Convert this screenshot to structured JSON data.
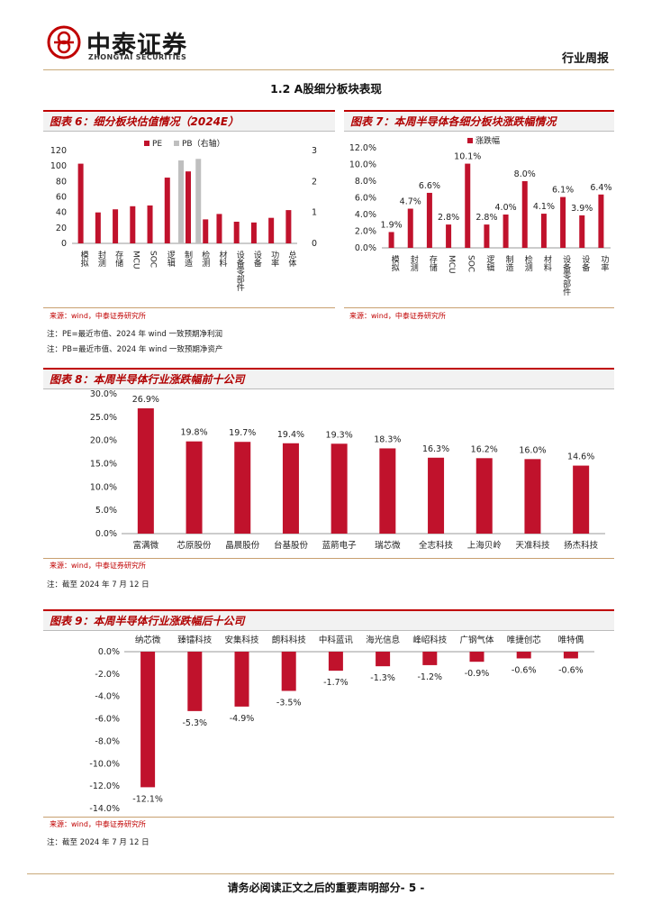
{
  "header": {
    "logo_cn": "中泰证券",
    "logo_en": "ZHONGTAI SECURITIES",
    "report_type": "行业周报"
  },
  "section_title": "1.2 A股细分板块表现",
  "figures": {
    "fig6": {
      "title": "图表 6：细分板块估值情况（2024E）",
      "source": "来源：wind，中泰证券研究所"
    },
    "fig7": {
      "title": "图表 7：本周半导体各细分板块涨跌幅情况",
      "source": "来源：wind，中泰证券研究所"
    },
    "fig8": {
      "title": "图表 8：本周半导体行业涨跌幅前十公司",
      "source": "来源：wind，中泰证券研究所"
    },
    "fig9": {
      "title": "图表 9：本周半导体行业涨跌幅后十公司",
      "source": "来源：wind，中泰证券研究所"
    }
  },
  "notes": {
    "pe": "注：PE=最近市值、2024 年 wind 一致预期净利润",
    "pb": "注：PB=最近市值、2024 年 wind 一致预期净资产",
    "date8": "注：截至 2024 年 7 月 12 日",
    "date9": "注：截至 2024 年 7 月 12 日"
  },
  "footer": "请务必阅读正文之后的重要声明部分- 5 -",
  "colors": {
    "bar_red": "#c0122c",
    "bar_gray": "#bfbfbf",
    "brand_red": "#c00000"
  },
  "chart_data": [
    {
      "id": "fig6",
      "type": "bar",
      "categories": [
        "模拟",
        "封测",
        "存储",
        "MCU",
        "SOC",
        "逻辑",
        "制造",
        "检测",
        "材料",
        "设备零部件",
        "设备",
        "功率",
        "总体"
      ],
      "series": [
        {
          "name": "PE",
          "axis": "left",
          "values": [
            103,
            40,
            44,
            48,
            49,
            85,
            null,
            31,
            38,
            28,
            27,
            33,
            43
          ],
          "color": "#c0122c"
        },
        {
          "name": "PB（右轴）",
          "axis": "right",
          "values": [
            null,
            null,
            null,
            null,
            null,
            null,
            2.68,
            2.73,
            null,
            null,
            null,
            null,
            null
          ],
          "color": "#bfbfbf"
        }
      ],
      "extra_pe_on_manufacturing": 93,
      "ylim": [
        0,
        120
      ],
      "yticks": [
        0,
        20,
        40,
        60,
        80,
        100,
        120
      ],
      "y2lim": [
        0,
        3
      ],
      "y2ticks": [
        0,
        1,
        2,
        3
      ],
      "legend": "top-center"
    },
    {
      "id": "fig7",
      "type": "bar",
      "categories": [
        "模拟",
        "封测",
        "存储",
        "MCU",
        "SOC",
        "逻辑",
        "制造",
        "检测",
        "材料",
        "设备零部件",
        "设备",
        "功率"
      ],
      "series": [
        {
          "name": "涨跌幅",
          "values": [
            1.9,
            4.7,
            6.6,
            2.8,
            10.1,
            2.8,
            4.0,
            8.0,
            4.1,
            6.1,
            3.9,
            6.4
          ]
        }
      ],
      "labels": [
        "1.9%",
        "4.7%",
        "6.6%",
        "2.8%",
        "10.1%",
        "2.8%",
        "4.0%",
        "8.0%",
        "4.1%",
        "6.1%",
        "3.9%",
        "6.4%"
      ],
      "ylim": [
        0,
        12
      ],
      "yticks": [
        "0.0%",
        "2.0%",
        "4.0%",
        "6.0%",
        "8.0%",
        "10.0%",
        "12.0%"
      ],
      "legend": "top-center"
    },
    {
      "id": "fig8",
      "type": "bar",
      "categories": [
        "富满微",
        "芯原股份",
        "晶晨股份",
        "台基股份",
        "蓝箭电子",
        "瑞芯微",
        "全志科技",
        "上海贝岭",
        "天准科技",
        "扬杰科技"
      ],
      "values": [
        26.9,
        19.8,
        19.7,
        19.4,
        19.3,
        18.3,
        16.3,
        16.2,
        16.0,
        14.6
      ],
      "labels": [
        "26.9%",
        "19.8%",
        "19.7%",
        "19.4%",
        "19.3%",
        "18.3%",
        "16.3%",
        "16.2%",
        "16.0%",
        "14.6%"
      ],
      "ylim": [
        0,
        30
      ],
      "yticks": [
        "0.0%",
        "5.0%",
        "10.0%",
        "15.0%",
        "20.0%",
        "25.0%",
        "30.0%"
      ]
    },
    {
      "id": "fig9",
      "type": "bar",
      "categories": [
        "纳芯微",
        "臻镭科技",
        "安集科技",
        "朗科科技",
        "中科蓝讯",
        "海光信息",
        "峰岹科技",
        "广钢气体",
        "唯捷创芯",
        "唯特偶"
      ],
      "values": [
        -12.1,
        -5.3,
        -4.9,
        -3.5,
        -1.7,
        -1.3,
        -1.2,
        -0.9,
        -0.6,
        -0.6
      ],
      "labels": [
        "-12.1%",
        "-5.3%",
        "-4.9%",
        "-3.5%",
        "-1.7%",
        "-1.3%",
        "-1.2%",
        "-0.9%",
        "-0.6%",
        "-0.6%"
      ],
      "ylim": [
        -14,
        0
      ],
      "yticks": [
        "0.0%",
        "-2.0%",
        "-4.0%",
        "-6.0%",
        "-8.0%",
        "-10.0%",
        "-12.0%",
        "-14.0%"
      ]
    }
  ]
}
